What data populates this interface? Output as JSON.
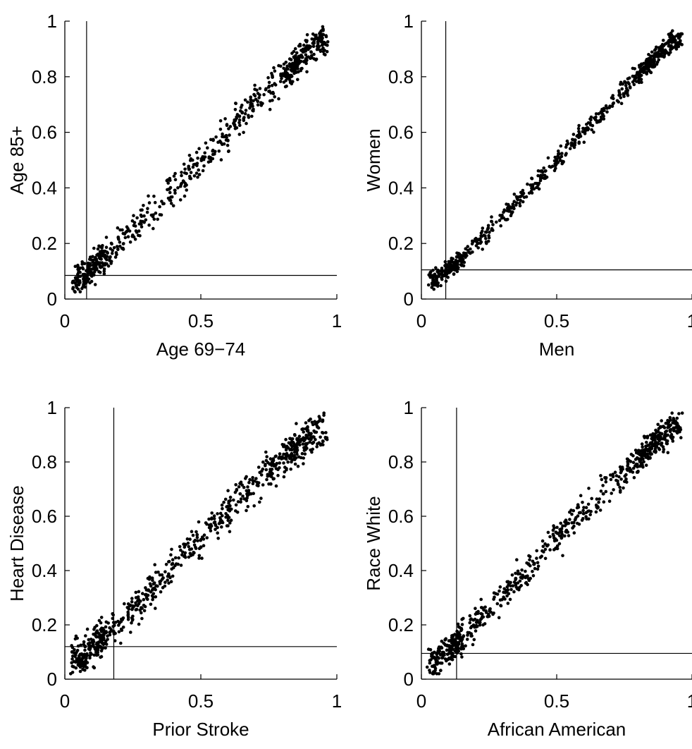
{
  "chart_data": [
    {
      "type": "scatter",
      "xlabel": "Age 69−74",
      "ylabel": "Age 85+",
      "xlim": [
        0,
        1
      ],
      "ylim": [
        0,
        1
      ],
      "xticks": [
        "0",
        "0.5",
        "1"
      ],
      "yticks": [
        "0",
        "0.2",
        "0.4",
        "0.6",
        "0.8",
        "1"
      ],
      "vline": 0.08,
      "hline": 0.085,
      "grid": false,
      "marker_color": "#000000",
      "point_count": 700,
      "spread": 0.035,
      "points": [
        [
          0.05,
          0.07
        ],
        [
          0.08,
          0.09
        ],
        [
          0.1,
          0.12
        ],
        [
          0.15,
          0.15
        ],
        [
          0.2,
          0.2
        ],
        [
          0.3,
          0.3
        ],
        [
          0.4,
          0.4
        ],
        [
          0.5,
          0.5
        ],
        [
          0.6,
          0.6
        ],
        [
          0.7,
          0.72
        ],
        [
          0.8,
          0.8
        ],
        [
          0.9,
          0.9
        ],
        [
          0.93,
          0.93
        ]
      ]
    },
    {
      "type": "scatter",
      "xlabel": "Men",
      "ylabel": "Women",
      "xlim": [
        0,
        1
      ],
      "ylim": [
        0,
        1
      ],
      "xticks": [
        "0",
        "0.5",
        "1"
      ],
      "yticks": [
        "0",
        "0.2",
        "0.4",
        "0.6",
        "0.8",
        "1"
      ],
      "vline": 0.09,
      "hline": 0.105,
      "grid": false,
      "marker_color": "#000000",
      "point_count": 700,
      "spread": 0.02,
      "points": [
        [
          0.05,
          0.07
        ],
        [
          0.08,
          0.09
        ],
        [
          0.1,
          0.11
        ],
        [
          0.15,
          0.15
        ],
        [
          0.2,
          0.2
        ],
        [
          0.3,
          0.3
        ],
        [
          0.4,
          0.4
        ],
        [
          0.5,
          0.5
        ],
        [
          0.6,
          0.6
        ],
        [
          0.7,
          0.7
        ],
        [
          0.8,
          0.81
        ],
        [
          0.9,
          0.9
        ],
        [
          0.93,
          0.93
        ]
      ]
    },
    {
      "type": "scatter",
      "xlabel": "Prior Stroke",
      "ylabel": "Heart Disease",
      "xlim": [
        0,
        1
      ],
      "ylim": [
        0,
        1
      ],
      "xticks": [
        "0",
        "0.5",
        "1"
      ],
      "yticks": [
        "0",
        "0.2",
        "0.4",
        "0.6",
        "0.8",
        "1"
      ],
      "vline": 0.18,
      "hline": 0.12,
      "grid": false,
      "marker_color": "#000000",
      "point_count": 750,
      "spread": 0.04,
      "points": [
        [
          0.05,
          0.08
        ],
        [
          0.08,
          0.1
        ],
        [
          0.1,
          0.12
        ],
        [
          0.15,
          0.16
        ],
        [
          0.2,
          0.2
        ],
        [
          0.3,
          0.31
        ],
        [
          0.4,
          0.42
        ],
        [
          0.5,
          0.52
        ],
        [
          0.6,
          0.62
        ],
        [
          0.7,
          0.72
        ],
        [
          0.8,
          0.81
        ],
        [
          0.9,
          0.89
        ],
        [
          0.95,
          0.93
        ]
      ]
    },
    {
      "type": "scatter",
      "xlabel": "African American",
      "ylabel": "Race White",
      "xlim": [
        0,
        1
      ],
      "ylim": [
        0,
        1
      ],
      "xticks": [
        "0",
        "0.5",
        "1"
      ],
      "yticks": [
        "0",
        "0.2",
        "0.4",
        "0.6",
        "0.8",
        "1"
      ],
      "vline": 0.13,
      "hline": 0.095,
      "grid": false,
      "marker_color": "#000000",
      "point_count": 750,
      "spread": 0.035,
      "points": [
        [
          0.05,
          0.07
        ],
        [
          0.08,
          0.09
        ],
        [
          0.1,
          0.1
        ],
        [
          0.15,
          0.15
        ],
        [
          0.2,
          0.21
        ],
        [
          0.3,
          0.31
        ],
        [
          0.4,
          0.41
        ],
        [
          0.5,
          0.52
        ],
        [
          0.6,
          0.62
        ],
        [
          0.7,
          0.73
        ],
        [
          0.8,
          0.81
        ],
        [
          0.9,
          0.9
        ],
        [
          0.95,
          0.93
        ]
      ]
    }
  ]
}
